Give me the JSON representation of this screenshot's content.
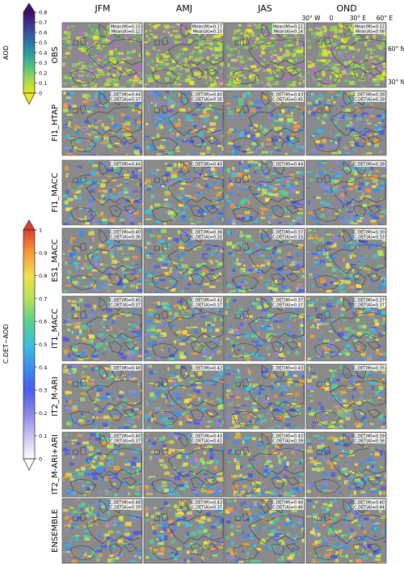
{
  "columns": [
    "JFM",
    "AMJ",
    "JAS",
    "OND"
  ],
  "rows": [
    {
      "label": "OBS",
      "kind": "obs",
      "stats": [
        [
          "Mean(M)=0.15",
          "Mean(A)=0.12"
        ],
        [
          "Mean(M)=0.17",
          "Mean(A)=0.15"
        ],
        [
          "Mean(M)=0.22",
          "Mean(A)=0.14"
        ],
        [
          "Mean(M)=0.12",
          "Mean(A)=0.08"
        ]
      ]
    },
    {
      "label": "FI1_HTAP",
      "kind": "det",
      "stats": [
        [
          "C.DET(M)=0.44",
          "C.DET(A)=0.37"
        ],
        [
          "C.DET(M)=0.40",
          "C.DET(A)=0.35"
        ],
        [
          "C.DET(M)=0.43",
          "C.DET(A)=0.45"
        ],
        [
          "C.DET(M)=0.38",
          "C.DET(A)=0.39"
        ]
      ]
    },
    {
      "label": "FI1_MACC",
      "kind": "det",
      "stats": [
        [
          "C.DET(M)=0.44",
          ""
        ],
        [
          "C.DET(M)=0.40",
          ""
        ],
        [
          "C.DET(M)=0.44",
          ""
        ],
        [
          "C.DET(M)=0.38",
          ""
        ]
      ]
    },
    {
      "label": "ES1_MACC",
      "kind": "det",
      "stats": [
        [
          "C.DET(M)=0.40",
          "C.DET(A)=0.36"
        ],
        [
          "C.DET(M)=0.36",
          "C.DET(A)=0.32"
        ],
        [
          "C.DET(M)=0.37",
          "C.DET(A)=0.33"
        ],
        [
          "C.DET(M)=0.30",
          "C.DET(A)=0.33"
        ]
      ]
    },
    {
      "label": "IT1_MACC",
      "kind": "det",
      "stats": [
        [
          "C.DET(M)=0.45",
          "C.DET(A)=0.37"
        ],
        [
          "C.DET(M)=0.42",
          "C.DET(A)=0.37"
        ],
        [
          "C.DET(M)=0.37",
          "C.DET(A)=0.37"
        ],
        [
          "C.DET(M)=0.37",
          "C.DET(A)=0.37"
        ]
      ]
    },
    {
      "label": "IT2_M-ARI",
      "kind": "det",
      "stats": [
        [
          "C.DET(M)=0.48",
          ""
        ],
        [
          "C.DET(M)=0.42",
          ""
        ],
        [
          "C.DET(M)=0.43",
          ""
        ],
        [
          "C.DET(M)=0.35",
          ""
        ]
      ]
    },
    {
      "label": "IT2_M-ARI+ARI",
      "kind": "det",
      "stats": [
        [
          "C.DET(M)=0.48",
          "C.DET(A)=0.37"
        ],
        [
          "C.DET(M)=0.43",
          "C.DET(A)=0.41"
        ],
        [
          "C.DET(M)=0.43",
          "C.DET(A)=0.39"
        ],
        [
          "C.DET(M)=0.39",
          "C.DET(A)=0.36"
        ]
      ]
    },
    {
      "label": "ENSEMBLE",
      "kind": "det",
      "stats": [
        [
          "C.DET(M)=0.48",
          "C.DET(A)=0.39"
        ],
        [
          "C.DET(M)=0.43",
          "C.DET(A)=0.37"
        ],
        [
          "C.DET(M)=0.48",
          "C.DET(A)=0.46"
        ],
        [
          "C.DET(M)=0.40",
          "C.DET(A)=0.44"
        ]
      ]
    }
  ],
  "aod_colorbar": {
    "label": "AOD",
    "ticks": [
      "0.8",
      "0.7",
      "0.6",
      "0.5",
      "0.4",
      "0.3",
      "0.2",
      "0.1",
      "0"
    ],
    "colors": [
      "#3b0f6f",
      "#3f3a8f",
      "#2f6aa0",
      "#2a9aa2",
      "#4fbf7f",
      "#a6d94c",
      "#e8e824"
    ]
  },
  "cdet_colorbar": {
    "label": "C.DET~AOD",
    "ticks": [
      "1",
      "0.9",
      "0.8",
      "0.7",
      "0.6",
      "0.5",
      "0.4",
      "0.3",
      "0.2",
      "0.1",
      "0"
    ],
    "colors": [
      "#e0412c",
      "#f59a3c",
      "#f5de4a",
      "#b4e35a",
      "#5ccf8f",
      "#3fbfd9",
      "#3b8ff0",
      "#4a5ce8",
      "#8a86e6",
      "#c8c4ef",
      "#ffffff"
    ]
  },
  "geo_axes": {
    "top": [
      "30° W",
      "0",
      "30° E",
      "60° E"
    ],
    "right": [
      "60° N",
      "30° N"
    ]
  },
  "colors": {
    "map_background": "#8a8a8a",
    "coast": "#3a3a3a",
    "det_palette": [
      "#4a5ce8",
      "#3b8ff0",
      "#3fbfd9",
      "#5ccf8f",
      "#b4e35a",
      "#f5de4a",
      "#f59a3c",
      "#8a86e6"
    ],
    "obs_palette": [
      "#a6d94c",
      "#c6e04a",
      "#e8e824",
      "#8fd05a",
      "#6cc56a",
      "#b070c8"
    ]
  }
}
